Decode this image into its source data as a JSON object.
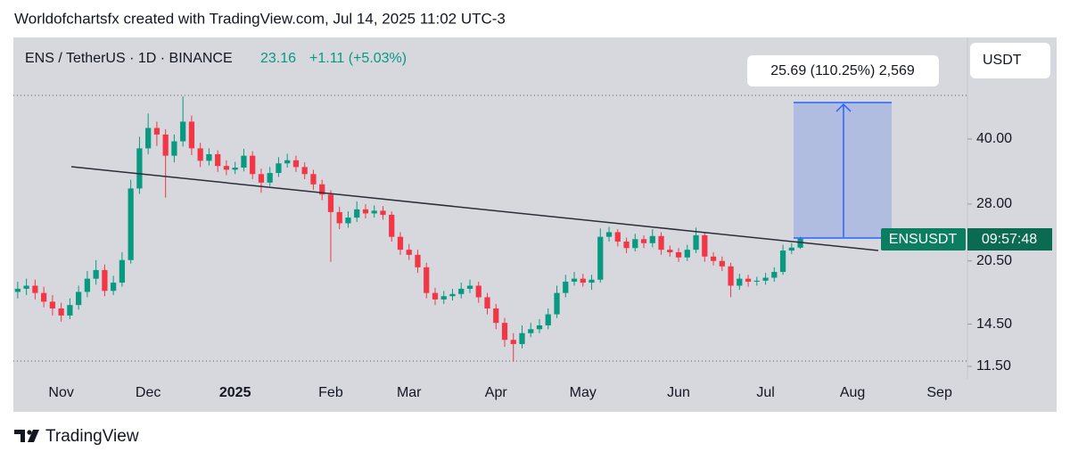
{
  "header": {
    "attribution": "Worldofchartsfx created with TradingView.com, Jul 14, 2025 11:02 UTC-3",
    "footer": "TradingView"
  },
  "chart_data": {
    "type": "candlestick",
    "title": "ENS / TetherUS · 1D · BINANCE",
    "last_price": 23.16,
    "change": "+1.11 (+5.03%)",
    "currency": "USDT",
    "symbol": "ENSUSDT",
    "countdown": "09:57:48",
    "measure_label": "25.69 (110.25%) 2,569",
    "log_scale": true,
    "up_color": "#089981",
    "down_color": "#f23645",
    "ylim": [
      10.74,
      69.8
    ],
    "yticks": [
      {
        "value": 11.5,
        "label": "11.50"
      },
      {
        "value": 14.5,
        "label": "14.50"
      },
      {
        "value": 20.5,
        "label": "20.50"
      },
      {
        "value": 28,
        "label": "28.00"
      },
      {
        "value": 40,
        "label": "40.00"
      }
    ],
    "categories": [
      null,
      null,
      null,
      null,
      null,
      "Nov",
      null,
      null,
      null,
      null,
      null,
      null,
      null,
      null,
      null,
      "Dec",
      null,
      null,
      null,
      null,
      null,
      null,
      null,
      null,
      null,
      "2025",
      null,
      null,
      null,
      null,
      null,
      null,
      null,
      null,
      null,
      null,
      "Feb",
      null,
      null,
      null,
      null,
      null,
      null,
      null,
      null,
      "Mar",
      null,
      null,
      null,
      null,
      null,
      null,
      null,
      null,
      null,
      "Apr",
      null,
      null,
      null,
      null,
      null,
      null,
      null,
      null,
      null,
      "May",
      null,
      null,
      null,
      null,
      null,
      null,
      null,
      null,
      null,
      null,
      "Jun",
      null,
      null,
      null,
      null,
      null,
      null,
      null,
      null,
      null,
      "Jul",
      null,
      null,
      null,
      null,
      null,
      null,
      null,
      null,
      null,
      "Aug",
      null,
      null,
      null,
      null,
      null,
      null,
      null,
      null,
      null,
      "Sep",
      null,
      null
    ],
    "open": [
      17.3,
      17.6,
      17.9,
      17.2,
      16.4,
      15.8,
      15.2,
      16.1,
      17.3,
      18.6,
      19.5,
      17.4,
      18.2,
      20.6,
      30.5,
      38.0,
      42.5,
      41.0,
      36.5,
      39.5,
      44.0,
      38.0,
      35.5,
      36.8,
      34.5,
      33.8,
      34.2,
      36.5,
      33.0,
      31.5,
      33.2,
      35.0,
      35.6,
      34.3,
      33.0,
      31.2,
      29.5,
      26.8,
      25.2,
      26.0,
      27.2,
      26.6,
      27.0,
      26.4,
      23.4,
      21.8,
      21.2,
      19.8,
      17.2,
      16.6,
      16.9,
      17.1,
      17.6,
      17.9,
      16.8,
      15.8,
      14.6,
      13.3,
      13.0,
      13.8,
      14.1,
      14.4,
      15.3,
      17.2,
      18.3,
      18.6,
      18.2,
      18.5,
      23.4,
      24.0,
      22.8,
      22.0,
      23.1,
      22.6,
      23.5,
      21.8,
      21.5,
      20.9,
      21.8,
      23.6,
      21.0,
      20.5,
      19.9,
      17.9,
      18.6,
      18.3,
      18.4,
      18.7,
      19.3,
      21.7,
      22.05,
      null,
      null,
      null,
      null,
      null,
      null,
      null,
      null,
      null,
      null,
      null,
      null,
      null,
      null,
      null,
      null,
      null,
      null
    ],
    "high": [
      18.3,
      18.6,
      18.5,
      17.8,
      17.0,
      16.3,
      16.7,
      17.9,
      19.4,
      20.6,
      20.1,
      18.9,
      21.5,
      32.0,
      40.5,
      46.0,
      44.0,
      42.2,
      41.0,
      50.5,
      45.5,
      39.2,
      38.0,
      37.6,
      35.6,
      35.3,
      37.9,
      37.4,
      34.0,
      34.3,
      36.2,
      36.9,
      36.5,
      35.2,
      33.8,
      32.0,
      30.2,
      27.6,
      26.9,
      28.4,
      28.0,
      27.8,
      27.7,
      26.9,
      24.0,
      22.5,
      21.8,
      20.3,
      17.7,
      17.4,
      17.6,
      18.2,
      18.5,
      18.3,
      17.2,
      16.2,
      15.0,
      13.8,
      14.4,
      14.6,
      14.9,
      15.8,
      17.9,
      19.0,
      19.3,
      19.1,
      19.0,
      24.5,
      24.7,
      24.4,
      23.3,
      23.8,
      23.6,
      24.4,
      24.0,
      22.3,
      22.0,
      22.4,
      24.6,
      24.0,
      21.5,
      21.0,
      20.3,
      19.1,
      19.0,
      18.8,
      19.2,
      19.8,
      22.4,
      22.6,
      23.4,
      null,
      null,
      null,
      null,
      null,
      null,
      null,
      null,
      null,
      null,
      null,
      null,
      null,
      null,
      null,
      null,
      null,
      null
    ],
    "low": [
      16.7,
      17.0,
      16.6,
      15.9,
      15.2,
      14.7,
      14.9,
      15.7,
      16.8,
      18.0,
      16.9,
      17.0,
      17.8,
      20.2,
      29.6,
      36.8,
      38.5,
      29.0,
      35.2,
      38.4,
      36.6,
      34.3,
      34.6,
      33.4,
      32.8,
      33.0,
      33.5,
      32.1,
      29.8,
      30.9,
      32.5,
      34.2,
      33.4,
      32.1,
      30.3,
      28.6,
      20.4,
      24.4,
      24.6,
      25.4,
      25.9,
      26.0,
      25.7,
      22.8,
      21.2,
      20.6,
      19.2,
      16.7,
      16.1,
      16.2,
      16.5,
      16.7,
      17.2,
      16.3,
      15.3,
      14.1,
      12.8,
      11.8,
      12.7,
      13.5,
      13.8,
      14.1,
      15.0,
      16.8,
      17.9,
      17.8,
      17.5,
      18.2,
      22.8,
      22.2,
      21.4,
      21.6,
      22.0,
      22.1,
      21.2,
      21.0,
      20.4,
      20.5,
      21.4,
      20.4,
      20.0,
      19.4,
      16.8,
      17.5,
      17.8,
      17.9,
      18.0,
      18.3,
      19.0,
      21.3,
      21.9,
      null,
      null,
      null,
      null,
      null,
      null,
      null,
      null,
      null,
      null,
      null,
      null,
      null,
      null,
      null,
      null,
      null,
      null
    ],
    "close": [
      17.6,
      17.9,
      17.2,
      16.4,
      15.8,
      15.2,
      16.1,
      17.3,
      18.6,
      19.5,
      17.4,
      18.2,
      20.6,
      30.5,
      38.0,
      42.5,
      41.0,
      36.5,
      39.5,
      44.0,
      38.0,
      35.5,
      36.8,
      34.5,
      33.8,
      34.2,
      36.5,
      33.0,
      31.5,
      33.2,
      35.0,
      35.6,
      34.3,
      33.0,
      31.2,
      29.5,
      26.8,
      25.2,
      26.0,
      27.2,
      26.6,
      27.0,
      26.4,
      23.4,
      21.8,
      21.2,
      19.8,
      17.2,
      16.6,
      16.9,
      17.1,
      17.6,
      17.9,
      16.8,
      15.8,
      14.6,
      13.3,
      13.0,
      13.8,
      14.1,
      14.4,
      15.3,
      17.2,
      18.3,
      18.6,
      18.2,
      18.5,
      23.4,
      24.0,
      22.8,
      22.0,
      23.1,
      22.6,
      23.5,
      21.8,
      21.5,
      20.9,
      21.8,
      23.6,
      21.0,
      20.5,
      19.9,
      17.9,
      18.6,
      18.3,
      18.4,
      18.7,
      19.3,
      21.7,
      22.05,
      23.16,
      null,
      null,
      null,
      null,
      null,
      null,
      null,
      null,
      null,
      null,
      null,
      null,
      null,
      null,
      null,
      null,
      null,
      null
    ]
  }
}
